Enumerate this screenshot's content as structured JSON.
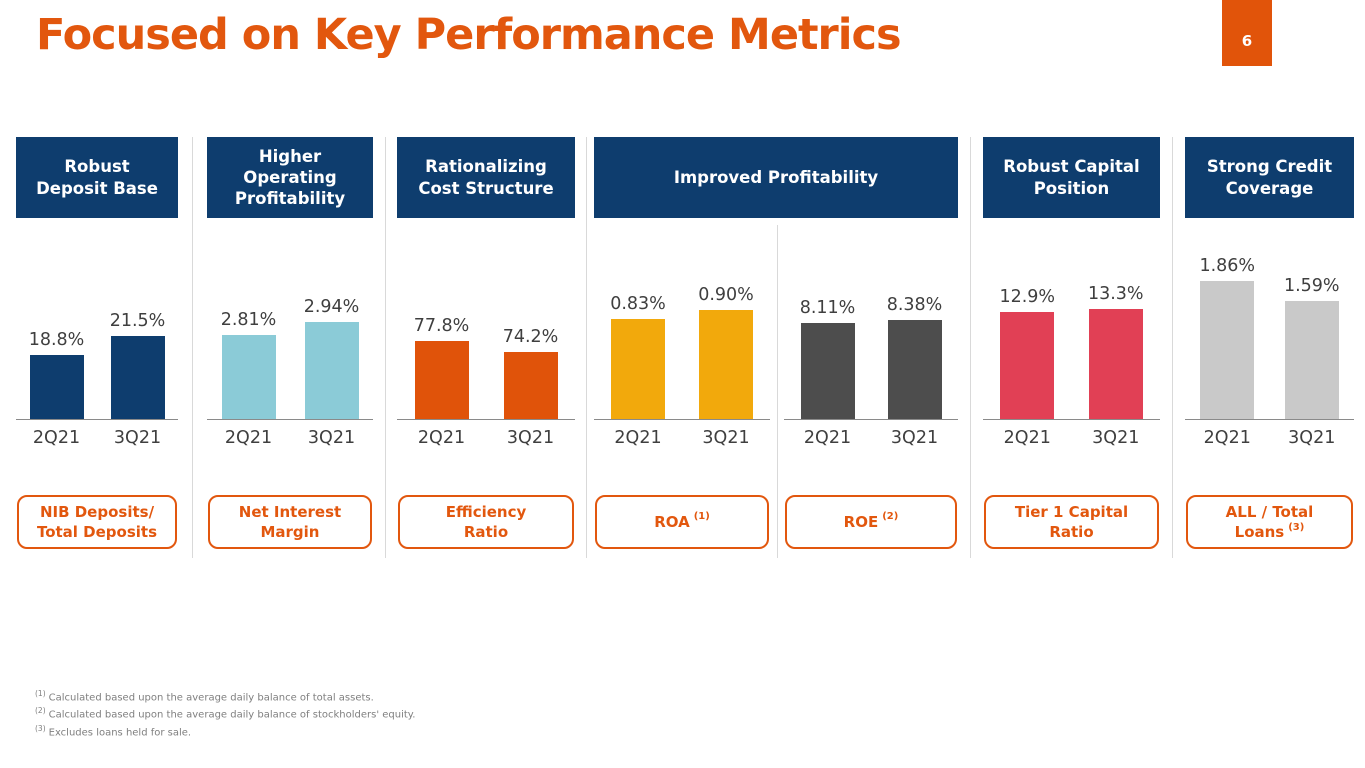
{
  "slide": {
    "title": "Focused on Key Performance Metrics",
    "page_number": "6",
    "accent_orange": "#E2570E",
    "navy": "#0E3D6E",
    "divider_color": "#D9D9D9"
  },
  "sections": [
    {
      "header": "Robust\nDeposit Base"
    },
    {
      "header": "Higher\nOperating\nProfitability"
    },
    {
      "header": "Rationalizing\nCost Structure"
    },
    {
      "header": "Improved Profitability"
    },
    {
      "header": "Robust Capital\nPosition"
    },
    {
      "header": "Strong Credit\nCoverage"
    }
  ],
  "pills": [
    {
      "label": "NIB Deposits/\nTotal Deposits",
      "sup": ""
    },
    {
      "label": "Net Interest\nMargin",
      "sup": ""
    },
    {
      "label": "Efficiency\nRatio",
      "sup": ""
    },
    {
      "label": "ROA",
      "sup": "(1)"
    },
    {
      "label": "ROE",
      "sup": "(2)"
    },
    {
      "label": "Tier 1 Capital\nRatio",
      "sup": ""
    },
    {
      "label": "ALL / Total\nLoans",
      "sup": "(3)"
    }
  ],
  "chart_data": [
    {
      "type": "bar",
      "metric": "NIB Deposits / Total Deposits",
      "categories": [
        "2Q21",
        "3Q21"
      ],
      "values": [
        18.8,
        21.5
      ],
      "value_labels": [
        "18.8%",
        "21.5%"
      ],
      "bar_color": "#0E3D6E",
      "ylim": [
        10,
        30
      ],
      "legend": "none",
      "grid": false
    },
    {
      "type": "bar",
      "metric": "Net Interest Margin",
      "categories": [
        "2Q21",
        "3Q21"
      ],
      "values": [
        2.81,
        2.94
      ],
      "value_labels": [
        "2.81%",
        "2.94%"
      ],
      "bar_color": "#8BCBD7",
      "ylim": [
        2.0,
        3.4
      ],
      "legend": "none",
      "grid": false
    },
    {
      "type": "bar",
      "metric": "Efficiency Ratio",
      "categories": [
        "2Q21",
        "3Q21"
      ],
      "values": [
        77.8,
        74.2
      ],
      "value_labels": [
        "77.8%",
        "74.2%"
      ],
      "bar_color": "#E0530A",
      "ylim": [
        50,
        102
      ],
      "legend": "none",
      "grid": false
    },
    {
      "type": "bar",
      "metric": "ROA",
      "categories": [
        "2Q21",
        "3Q21"
      ],
      "values": [
        0.83,
        0.9
      ],
      "value_labels": [
        "0.83%",
        "0.90%"
      ],
      "bar_color": "#F2A90C",
      "ylim": [
        0,
        1.2
      ],
      "legend": "none",
      "grid": false
    },
    {
      "type": "bar",
      "metric": "ROE",
      "categories": [
        "2Q21",
        "3Q21"
      ],
      "values": [
        8.11,
        8.38
      ],
      "value_labels": [
        "8.11%",
        "8.38%"
      ],
      "bar_color": "#4D4D4D",
      "ylim": [
        0,
        12.3
      ],
      "legend": "none",
      "grid": false
    },
    {
      "type": "bar",
      "metric": "Tier 1 Capital Ratio",
      "categories": [
        "2Q21",
        "3Q21"
      ],
      "values": [
        12.9,
        13.3
      ],
      "value_labels": [
        "12.9%",
        "13.3%"
      ],
      "bar_color": "#E14055",
      "ylim": [
        0,
        17.5
      ],
      "legend": "none",
      "grid": false
    },
    {
      "type": "bar",
      "metric": "ALL / Total Loans",
      "categories": [
        "2Q21",
        "3Q21"
      ],
      "values": [
        1.86,
        1.59
      ],
      "value_labels": [
        "1.86%",
        "1.59%"
      ],
      "bar_color": "#C9C9C9",
      "ylim": [
        0,
        1.95
      ],
      "legend": "none",
      "grid": false
    }
  ],
  "footnotes": [
    {
      "ref": "(1)",
      "text": "Calculated based upon the average daily balance of total assets."
    },
    {
      "ref": "(2)",
      "text": "Calculated based upon the average daily balance of stockholders' equity."
    },
    {
      "ref": "(3)",
      "text": "Excludes loans held for sale."
    }
  ]
}
